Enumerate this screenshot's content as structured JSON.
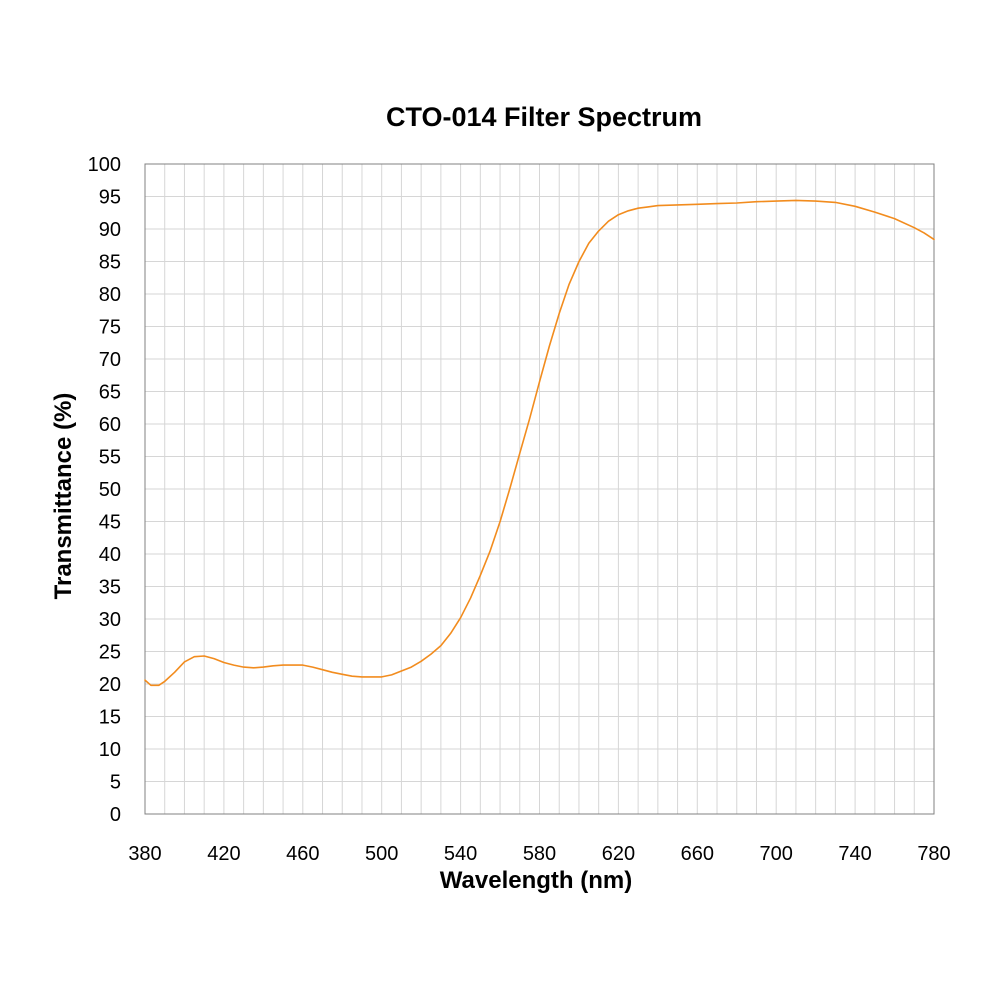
{
  "chart_data": {
    "type": "line",
    "title": "CTO-014 Filter Spectrum",
    "xlabel": "Wavelength (nm)",
    "ylabel": "Transmittance (%)",
    "xlim": [
      380,
      780
    ],
    "ylim": [
      0,
      100
    ],
    "x_ticks": [
      380,
      420,
      460,
      500,
      540,
      580,
      620,
      660,
      700,
      740,
      780
    ],
    "y_ticks": [
      0,
      5,
      10,
      15,
      20,
      25,
      30,
      35,
      40,
      45,
      50,
      55,
      60,
      65,
      70,
      75,
      80,
      85,
      90,
      95,
      100
    ],
    "x_minor_step": 10,
    "grid": true,
    "legend": "none",
    "colors": {
      "series": "#F28C1E",
      "grid": "#D6D6D6",
      "frame": "#808080"
    },
    "series": [
      {
        "x": [
          380,
          383,
          387,
          390,
          395,
          400,
          405,
          410,
          415,
          420,
          425,
          430,
          435,
          440,
          445,
          450,
          455,
          460,
          465,
          470,
          475,
          480,
          485,
          490,
          495,
          500,
          505,
          510,
          515,
          520,
          525,
          530,
          535,
          540,
          545,
          550,
          555,
          560,
          565,
          570,
          575,
          580,
          585,
          590,
          595,
          600,
          605,
          610,
          615,
          620,
          625,
          630,
          635,
          640,
          650,
          660,
          670,
          680,
          690,
          700,
          710,
          720,
          730,
          740,
          750,
          760,
          770,
          775,
          780
        ],
        "values": [
          20.6,
          19.8,
          19.8,
          20.4,
          21.8,
          23.4,
          24.2,
          24.3,
          23.9,
          23.3,
          22.9,
          22.6,
          22.5,
          22.6,
          22.8,
          22.9,
          22.9,
          22.9,
          22.6,
          22.2,
          21.8,
          21.5,
          21.2,
          21.1,
          21.1,
          21.1,
          21.4,
          22.0,
          22.6,
          23.5,
          24.6,
          25.9,
          27.8,
          30.2,
          33.2,
          36.7,
          40.5,
          45.0,
          50.1,
          55.5,
          60.8,
          66.5,
          72.0,
          77.0,
          81.5,
          85.0,
          87.8,
          89.7,
          91.2,
          92.2,
          92.8,
          93.2,
          93.4,
          93.6,
          93.7,
          93.8,
          93.9,
          94.0,
          94.2,
          94.3,
          94.4,
          94.3,
          94.1,
          93.5,
          92.6,
          91.6,
          90.2,
          89.4,
          88.4
        ]
      }
    ]
  }
}
